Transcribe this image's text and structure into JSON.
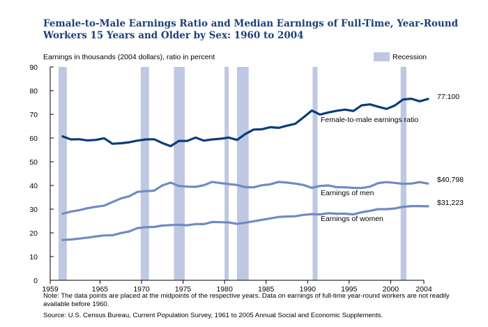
{
  "title": "Female-to-Male Earnings Ratio and Median Earnings of Full-Time, Year-Round Workers 15 Years and Older by Sex:  1960 to 2004",
  "note": "Note:  The data points are placed at the midpoints of the respective years.  Data on earnings of full-time year-round workers are not readily available before 1960.",
  "source": "Source:  U.S. Census Bureau, Current Population Survey, 1961 to 2005 Annual Social and Economic Supplements.",
  "colors": {
    "ratio": "#0b3c7c",
    "earnings": "#6f8bc4",
    "recession": "#bfc8e2"
  },
  "chart_data": {
    "type": "line",
    "ylabel": "Earnings in thousands (2004 dollars), ratio in percent",
    "xlim": [
      1959,
      2004
    ],
    "ylim": [
      0,
      90
    ],
    "x_ticks": [
      "1959",
      "1965",
      "1970",
      "1975",
      "1980",
      "1985",
      "1990",
      "1995",
      "2000",
      "2004"
    ],
    "y_ticks": [
      "0",
      "10",
      "20",
      "30",
      "40",
      "50",
      "60",
      "70",
      "80",
      "90"
    ],
    "legend": {
      "label": "Recession",
      "position": "top-right"
    },
    "recessions": [
      [
        1960,
        1961
      ],
      [
        1969.9,
        1970.9
      ],
      [
        1973.9,
        1975.2
      ],
      [
        1980,
        1980.5
      ],
      [
        1981.5,
        1982.9
      ],
      [
        1990.6,
        1991.2
      ],
      [
        2001.2,
        2001.9
      ]
    ],
    "series": [
      {
        "name": "Female-to-male earnings ratio",
        "end_label": "77:100",
        "x": [
          1960,
          1961,
          1962,
          1963,
          1964,
          1965,
          1966,
          1967,
          1968,
          1969,
          1970,
          1971,
          1972,
          1973,
          1974,
          1975,
          1976,
          1977,
          1978,
          1979,
          1980,
          1981,
          1982,
          1983,
          1984,
          1985,
          1986,
          1987,
          1988,
          1989,
          1990,
          1991,
          1992,
          1993,
          1994,
          1995,
          1996,
          1997,
          1998,
          1999,
          2000,
          2001,
          2002,
          2003,
          2004
        ],
        "values": [
          60.7,
          59.4,
          59.5,
          59.0,
          59.2,
          59.9,
          57.6,
          57.8,
          58.2,
          58.9,
          59.4,
          59.5,
          57.9,
          56.6,
          58.8,
          58.8,
          60.2,
          58.9,
          59.4,
          59.7,
          60.2,
          59.2,
          61.7,
          63.6,
          63.7,
          64.6,
          64.3,
          65.2,
          66.0,
          68.7,
          71.6,
          69.9,
          70.8,
          71.5,
          72.0,
          71.4,
          73.8,
          74.2,
          73.2,
          72.3,
          73.7,
          76.3,
          76.6,
          75.5,
          76.5
        ]
      },
      {
        "name": "Earnings of men",
        "end_label": "$40,798",
        "x": [
          1960,
          1961,
          1962,
          1963,
          1964,
          1965,
          1966,
          1967,
          1968,
          1969,
          1970,
          1971,
          1972,
          1973,
          1974,
          1975,
          1976,
          1977,
          1978,
          1979,
          1980,
          1981,
          1982,
          1983,
          1984,
          1985,
          1986,
          1987,
          1988,
          1989,
          1990,
          1991,
          1992,
          1993,
          1994,
          1995,
          1996,
          1997,
          1998,
          1999,
          2000,
          2001,
          2002,
          2003,
          2004
        ],
        "values": [
          28.1,
          29.0,
          29.6,
          30.4,
          31.0,
          31.5,
          33.0,
          34.5,
          35.4,
          37.3,
          37.6,
          37.8,
          40.0,
          41.2,
          39.8,
          39.5,
          39.4,
          40.1,
          41.5,
          41.0,
          40.6,
          40.2,
          39.3,
          39.2,
          40.1,
          40.5,
          41.5,
          41.2,
          40.8,
          40.2,
          39.0,
          39.8,
          40.0,
          39.3,
          39.2,
          39.0,
          38.9,
          39.5,
          41.0,
          41.4,
          41.1,
          40.7,
          40.8,
          41.4,
          40.8
        ]
      },
      {
        "name": "Earnings of women",
        "end_label": "$31,223",
        "x": [
          1960,
          1961,
          1962,
          1963,
          1964,
          1965,
          1966,
          1967,
          1968,
          1969,
          1970,
          1971,
          1972,
          1973,
          1974,
          1975,
          1976,
          1977,
          1978,
          1979,
          1980,
          1981,
          1982,
          1983,
          1984,
          1985,
          1986,
          1987,
          1988,
          1989,
          1990,
          1991,
          1992,
          1993,
          1994,
          1995,
          1996,
          1997,
          1998,
          1999,
          2000,
          2001,
          2002,
          2003,
          2004
        ],
        "values": [
          17.0,
          17.2,
          17.6,
          18.0,
          18.5,
          18.9,
          19.0,
          19.9,
          20.6,
          22.0,
          22.4,
          22.5,
          23.1,
          23.3,
          23.4,
          23.2,
          23.7,
          23.7,
          24.6,
          24.5,
          24.4,
          23.8,
          24.3,
          24.9,
          25.5,
          26.1,
          26.7,
          26.9,
          27.0,
          27.6,
          27.9,
          27.8,
          28.3,
          28.1,
          28.1,
          27.8,
          28.7,
          29.3,
          30.0,
          30.0,
          30.3,
          31.0,
          31.3,
          31.3,
          31.2
        ]
      }
    ]
  }
}
